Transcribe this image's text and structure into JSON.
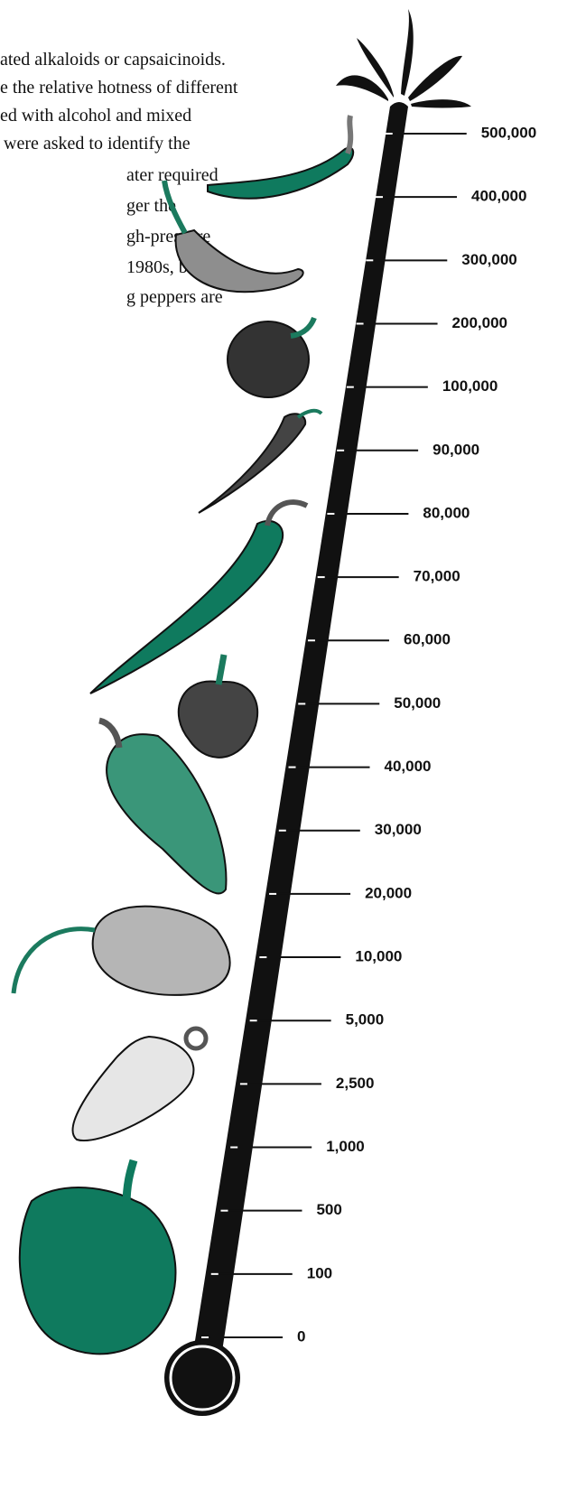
{
  "text_lines": [
    "ated alkaloids or capsaicinoids.",
    "e the relative hotness of different",
    "ed with alcohol and mixed",
    "were asked to identify the",
    "ater required",
    "ger the",
    "gh-pressure",
    "1980s, but the",
    "g peppers are"
  ],
  "scale": {
    "labels": [
      "500,000",
      "400,000",
      "300,000",
      "200,000",
      "100,000",
      "90,000",
      "80,000",
      "70,000",
      "60,000",
      "50,000",
      "40,000",
      "30,000",
      "20,000",
      "10,000",
      "5,000",
      "2,500",
      "1,000",
      "500",
      "100",
      "0"
    ]
  }
}
